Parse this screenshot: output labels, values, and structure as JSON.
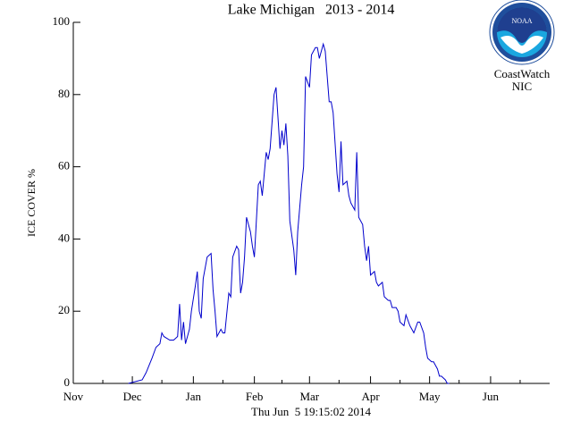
{
  "chart_data": {
    "type": "line",
    "title": "Lake Michigan   2013 - 2014",
    "subtitle": "Thu Jun  5 19:15:02 2014",
    "ylabel": "ICE COVER %",
    "logo": {
      "badge": "NOAA",
      "lines": [
        "CoastWatch",
        "NIC"
      ]
    },
    "xlim": [
      0,
      242
    ],
    "xticks": [
      {
        "value": 0,
        "label": "Nov"
      },
      {
        "value": 30,
        "label": "Dec"
      },
      {
        "value": 61,
        "label": "Jan"
      },
      {
        "value": 92,
        "label": "Feb"
      },
      {
        "value": 120,
        "label": "Mar"
      },
      {
        "value": 151,
        "label": "Apr"
      },
      {
        "value": 181,
        "label": "May"
      },
      {
        "value": 212,
        "label": "Jun"
      }
    ],
    "xminorticks": [
      15,
      45,
      76,
      106,
      135,
      166,
      196,
      227
    ],
    "ylim": [
      0,
      100
    ],
    "yticks": [
      0,
      20,
      40,
      60,
      80,
      100
    ],
    "grid": false,
    "series": [
      {
        "name": "Ice cover",
        "color": "#0000cc",
        "x": [
          28,
          35,
          37,
          40,
          42,
          44,
          45,
          46,
          49,
          51,
          53,
          54,
          55,
          56,
          57,
          59,
          60,
          62,
          63,
          64,
          65,
          66,
          68,
          70,
          71,
          72,
          73,
          75,
          76,
          77,
          79,
          80,
          81,
          83,
          84,
          85,
          86,
          87,
          88,
          90,
          91,
          92,
          94,
          95,
          96,
          98,
          99,
          100,
          102,
          103,
          105,
          106,
          107,
          108,
          109,
          110,
          112,
          113,
          114,
          116,
          117,
          118,
          120,
          121,
          123,
          124,
          125,
          127,
          128,
          130,
          131,
          132,
          134,
          135,
          136,
          137,
          139,
          140,
          141,
          143,
          144,
          145,
          147,
          148,
          149,
          150,
          151,
          153,
          154,
          155,
          157,
          158,
          160,
          161,
          162,
          164,
          165,
          166,
          168,
          169,
          171,
          172,
          173,
          175,
          176,
          178,
          179,
          180,
          182,
          183,
          185,
          186,
          187,
          189,
          190,
          191
        ],
        "values": [
          0,
          1,
          3,
          7,
          10,
          11,
          14,
          13,
          12,
          12,
          13,
          22,
          12,
          17,
          11,
          15,
          20,
          27,
          31,
          20,
          18,
          29,
          35,
          36,
          26,
          20,
          13,
          15,
          14,
          14,
          25,
          24,
          35,
          38,
          37,
          25,
          28,
          35,
          46,
          42,
          38,
          35,
          55,
          56,
          52,
          64,
          62,
          65,
          80,
          82,
          65,
          70,
          66,
          72,
          63,
          45,
          37,
          30,
          42,
          55,
          60,
          85,
          82,
          91,
          93,
          93,
          90,
          94,
          92,
          78,
          78,
          75,
          58,
          53,
          67,
          55,
          56,
          52,
          50,
          48,
          64,
          46,
          44,
          38,
          34,
          38,
          30,
          31,
          28,
          27,
          28,
          24,
          23,
          23,
          21,
          21,
          20,
          17,
          16,
          19,
          16,
          15,
          14,
          17,
          17,
          14,
          10,
          7,
          6,
          6,
          4,
          2,
          2,
          1,
          0,
          0
        ]
      }
    ]
  }
}
